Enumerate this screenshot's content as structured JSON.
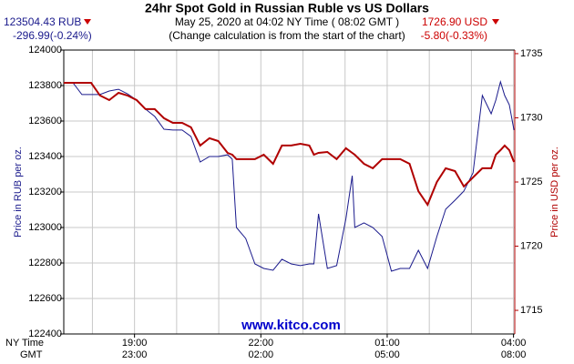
{
  "chart_data": {
    "type": "line",
    "title": "24hr Spot Gold in Russian Ruble vs US Dollars",
    "subtitle": "May 25, 2020 at 04:02 NY Time ( 08:02 GMT )",
    "note": "(Change calculation is from the start of the chart)",
    "left_price": "123504.43 RUB",
    "left_change": "-296.99(-0.24%)",
    "right_price": "1726.90 USD",
    "right_change": "-5.80(-0.33%)",
    "ylabel": "Price in RUB per oz.",
    "y2label": "Price in USD per oz.",
    "watermark": "www.kitco.com",
    "xlabel": "NY Time",
    "x2label": "GMT",
    "x": [
      17.32,
      17.54,
      17.75,
      17.97,
      18.18,
      18.4,
      18.62,
      18.83,
      19.05,
      19.26,
      19.48,
      19.7,
      19.91,
      20.13,
      20.34,
      20.56,
      20.78,
      20.99,
      21.21,
      21.32,
      21.42,
      21.64,
      21.86,
      22.07,
      22.29,
      22.5,
      22.72,
      22.94,
      23.15,
      23.26,
      23.37,
      23.58,
      23.8,
      24.02,
      24.17,
      24.23,
      24.45,
      24.66,
      24.88,
      25.1,
      25.31,
      25.53,
      25.74,
      25.96,
      26.18,
      26.39,
      26.61,
      26.82,
      27.04,
      27.26,
      27.47,
      27.58,
      27.69,
      27.79,
      27.9,
      28.01
    ],
    "series": [
      {
        "name": "RUB",
        "color": "#1a1a8c",
        "axis": "y",
        "values": [
          123815,
          123815,
          123749,
          123749,
          123749,
          123769,
          123779,
          123754,
          123718,
          123667,
          123626,
          123554,
          123549,
          123549,
          123513,
          123369,
          123400,
          123400,
          123410,
          123385,
          123000,
          122938,
          122795,
          122769,
          122759,
          122821,
          122795,
          122785,
          122795,
          122795,
          123077,
          122769,
          122785,
          123051,
          123292,
          123000,
          123026,
          123000,
          122949,
          122754,
          122769,
          122769,
          122872,
          122769,
          122949,
          123103,
          123154,
          123205,
          123308,
          123744,
          123641,
          123718,
          123821,
          123744,
          123692,
          123549
        ]
      },
      {
        "name": "USD",
        "color": "#b00000",
        "axis": "y2",
        "values": [
          1732.73,
          1732.73,
          1732.73,
          1732.73,
          1731.74,
          1731.38,
          1731.95,
          1731.74,
          1731.38,
          1730.68,
          1730.68,
          1729.97,
          1729.61,
          1729.61,
          1729.26,
          1727.84,
          1728.41,
          1728.19,
          1727.27,
          1727.13,
          1726.78,
          1726.78,
          1726.78,
          1727.13,
          1726.42,
          1727.84,
          1727.84,
          1727.98,
          1727.84,
          1727.13,
          1727.27,
          1727.34,
          1726.78,
          1727.63,
          1727.27,
          1727.13,
          1726.42,
          1726.07,
          1726.78,
          1726.78,
          1726.78,
          1726.42,
          1724.29,
          1723.23,
          1725.0,
          1726.07,
          1725.85,
          1724.65,
          1725.36,
          1726.07,
          1726.07,
          1727.13,
          1727.48,
          1727.84,
          1727.48,
          1726.56
        ]
      }
    ],
    "xlim": [
      17.32,
      28.03
    ],
    "xticks": [
      {
        "value": 19,
        "label": "19:00"
      },
      {
        "value": 22,
        "label": "22:00"
      },
      {
        "value": 25,
        "label": "01:00"
      },
      {
        "value": 28,
        "label": "04:00"
      }
    ],
    "x2ticks": [
      {
        "value": 19,
        "label": "23:00"
      },
      {
        "value": 22,
        "label": "02:00"
      },
      {
        "value": 25,
        "label": "05:00"
      },
      {
        "value": 28,
        "label": "08:00"
      }
    ],
    "xminor": [
      18,
      20,
      21,
      23,
      24,
      26,
      27
    ],
    "ylim": [
      122400,
      124000
    ],
    "yticks": [
      122400,
      122600,
      122800,
      123000,
      123200,
      123400,
      123600,
      123800,
      124000
    ],
    "y2lim": [
      1713.16,
      1735.28
    ],
    "y2ticks": [
      1715,
      1720,
      1725,
      1730,
      1735
    ],
    "grid": true
  }
}
